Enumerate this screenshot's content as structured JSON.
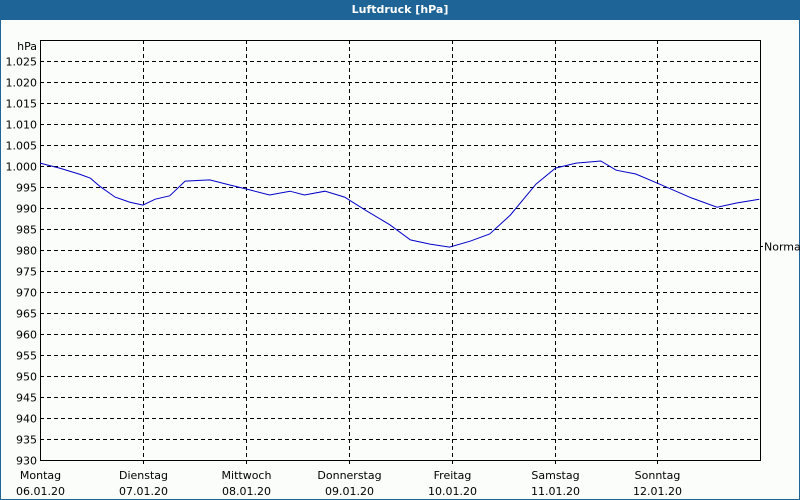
{
  "title": "Luftdruck [hPa]",
  "colors": {
    "titlebar": "#1e6496",
    "line": "#0000c8",
    "background": "#fbfdfb"
  },
  "chart_data": {
    "type": "line",
    "title": "Luftdruck [hPa]",
    "ylabel": "hPa",
    "xlabel": "",
    "ylim": [
      930,
      1025
    ],
    "yticks": [
      "930",
      "935",
      "940",
      "945",
      "950",
      "955",
      "960",
      "965",
      "970",
      "975",
      "980",
      "985",
      "990",
      "995",
      "1.000",
      "1.005",
      "1.010",
      "1.015",
      "1.020",
      "1.025"
    ],
    "categories": [
      {
        "day": "Montag",
        "date": "06.01.20"
      },
      {
        "day": "Dienstag",
        "date": "07.01.20"
      },
      {
        "day": "Mittwoch",
        "date": "08.01.20"
      },
      {
        "day": "Donnerstag",
        "date": "09.01.20"
      },
      {
        "day": "Freitag",
        "date": "10.01.20"
      },
      {
        "day": "Samstag",
        "date": "11.01.20"
      },
      {
        "day": "Sonntag",
        "date": "12.01.20"
      }
    ],
    "grid": true,
    "annotation": {
      "label": "Normal",
      "value": 981
    },
    "series": [
      {
        "name": "Luftdruck",
        "x_days": [
          0,
          0.19,
          0.39,
          0.49,
          0.58,
          0.73,
          0.87,
          1.0,
          1.12,
          1.26,
          1.41,
          1.65,
          1.84,
          2.04,
          2.23,
          2.43,
          2.57,
          2.77,
          2.96,
          3.16,
          3.4,
          3.6,
          3.79,
          3.98,
          4.18,
          4.37,
          4.57,
          4.82,
          5.01,
          5.21,
          5.45,
          5.6,
          5.79,
          6.04,
          6.33,
          6.58,
          6.77,
          6.99
        ],
        "values": [
          1000.7,
          999.5,
          998.0,
          997.1,
          995.2,
          992.6,
          991.4,
          990.7,
          992.1,
          992.9,
          996.4,
          996.7,
          995.5,
          994.3,
          993.1,
          994.0,
          993.1,
          994.0,
          992.6,
          989.5,
          986.0,
          982.4,
          981.4,
          980.7,
          982.1,
          983.8,
          988.3,
          995.7,
          999.5,
          1000.7,
          1001.2,
          999.0,
          998.1,
          995.5,
          992.4,
          990.2,
          991.2,
          992.1
        ]
      }
    ]
  }
}
